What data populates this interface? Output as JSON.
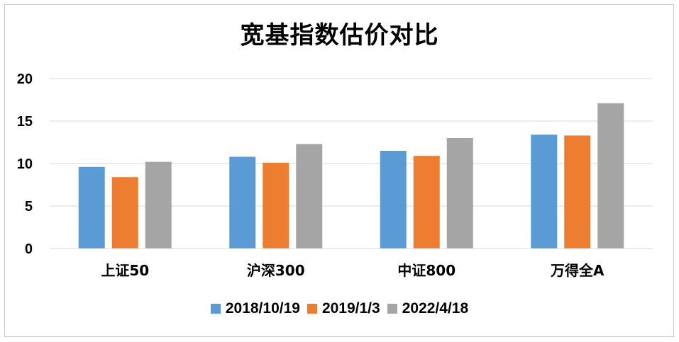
{
  "chart_data": {
    "type": "bar",
    "title": "宽基指数估价对比",
    "categories": [
      "上证50",
      "沪深300",
      "中证800",
      "万得全A"
    ],
    "series": [
      {
        "name": "2018/10/19",
        "color": "#5b9bd5",
        "values": [
          9.6,
          10.8,
          11.5,
          13.4
        ]
      },
      {
        "name": "2019/1/3",
        "color": "#ed7d31",
        "values": [
          8.4,
          10.1,
          10.9,
          13.3
        ]
      },
      {
        "name": "2022/4/18",
        "color": "#a5a5a5",
        "values": [
          10.2,
          12.3,
          13.0,
          17.1
        ]
      }
    ],
    "yticks": [
      "0",
      "5",
      "10",
      "15",
      "20"
    ],
    "ylim": [
      0,
      20
    ],
    "grid": true,
    "legend_position": "bottom"
  }
}
